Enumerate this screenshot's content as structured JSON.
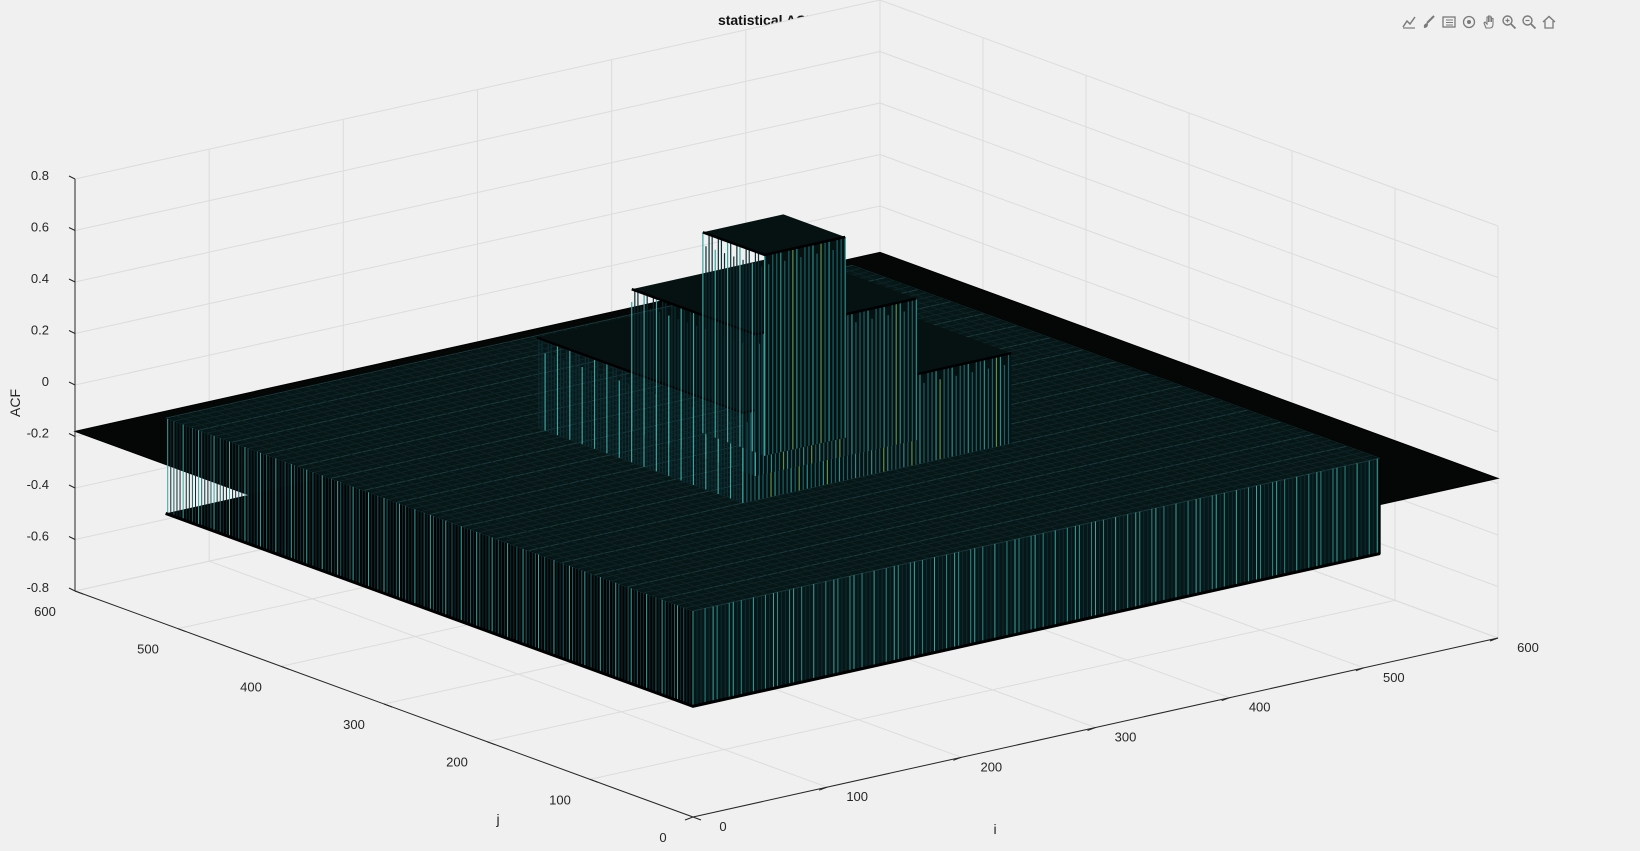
{
  "toolbar": {
    "icons": [
      "data-tips-icon",
      "brush-icon",
      "legend-icon",
      "rotate-3d-icon",
      "pan-hand-icon",
      "zoom-in-icon",
      "zoom-out-icon",
      "home-icon"
    ]
  },
  "chart_data": {
    "type": "surface",
    "title": "statistical ACF for every i and j",
    "xlabel": "i",
    "ylabel": "j",
    "zlabel": "ACF",
    "xlim": [
      0,
      600
    ],
    "ylim": [
      0,
      600
    ],
    "zlim": [
      -0.8,
      0.8
    ],
    "x_ticks": [
      "0",
      "100",
      "200",
      "300",
      "400",
      "500",
      "600"
    ],
    "y_ticks": [
      "0",
      "100",
      "200",
      "300",
      "400",
      "500",
      "600"
    ],
    "z_ticks": [
      "-0.8",
      "-0.6",
      "-0.4",
      "-0.2",
      "0",
      "0.2",
      "0.4",
      "0.6",
      "0.8"
    ],
    "grid": true,
    "surface": {
      "base_level": -0.18,
      "plateau_i_range": [
        0,
        512
      ],
      "plateau_j_range": [
        0,
        512
      ],
      "plateau_oscillation": [
        -0.37,
        0.0
      ],
      "peak_levels": [
        {
          "i_range": [
            160,
            360
          ],
          "j_range": [
            160,
            360
          ],
          "z_max": 0.35
        },
        {
          "i_range": [
            200,
            320
          ],
          "j_range": [
            200,
            320
          ],
          "z_max": 0.55
        },
        {
          "i_range": [
            230,
            290
          ],
          "j_range": [
            230,
            290
          ],
          "z_max": 0.78
        }
      ],
      "colormap": [
        "#0b2d33",
        "#1c5e64",
        "#2a8a8a",
        "#3aa3a0",
        "#5e8f4f"
      ]
    }
  }
}
